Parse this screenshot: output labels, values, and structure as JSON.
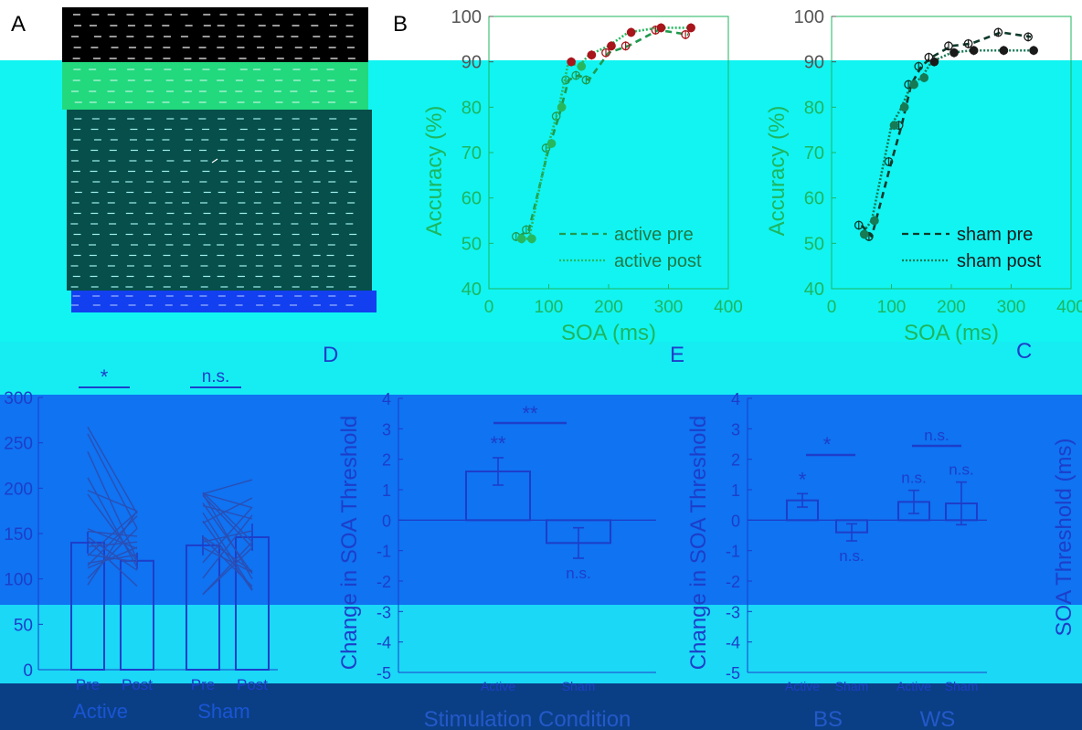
{
  "colors": {
    "bg_cyan": "#11f4f2",
    "black": "#000000",
    "green_band": "#22d97e",
    "dark_teal": "#064f4a",
    "blue_bar": "#1240f0",
    "mid_blue": "#0f73f2",
    "deep_blue": "#2a4fb5",
    "navy": "#0a3f86",
    "active_red": "#a8151b",
    "active_green": "#1f9a4e",
    "sham_black": "#1a1a1a",
    "axis_green": "#1db65f",
    "axis_blue": "#1d3ec9"
  },
  "panels": {
    "A": "A",
    "B": "B",
    "C": "C",
    "D": "D",
    "E": "E"
  },
  "chart_data": [
    {
      "id": "B-left",
      "type": "line",
      "ylabel": "Accuracy (%)",
      "xlabel": "SOA (ms)",
      "xlim": [
        0,
        400
      ],
      "ylim": [
        40,
        100
      ],
      "xticks": [
        "0",
        "100",
        "200",
        "300",
        "400"
      ],
      "yticks": [
        "40",
        "50",
        "60",
        "70",
        "80",
        "90",
        "100"
      ],
      "legend": [
        "active pre",
        "active post"
      ],
      "legend_position": "bottom-right",
      "series": [
        {
          "name": "active pre",
          "x": [
            50,
            67,
            100,
            117,
            133,
            150,
            167,
            200,
            233,
            283,
            333
          ],
          "y": [
            51.5,
            53,
            71,
            78,
            86,
            87,
            86,
            92,
            93.5,
            97,
            96
          ]
        },
        {
          "name": "active post",
          "x": [
            50,
            67,
            100,
            117,
            133,
            150,
            167,
            200,
            233,
            283,
            333
          ],
          "y": [
            51,
            51,
            72,
            80,
            90,
            89,
            91.5,
            93.5,
            96.5,
            97.5,
            97.5
          ]
        }
      ]
    },
    {
      "id": "B-right",
      "type": "line",
      "ylabel": "Accuracy (%)",
      "xlabel": "SOA (ms)",
      "xlim": [
        0,
        400
      ],
      "ylim": [
        40,
        100
      ],
      "xticks": [
        "0",
        "100",
        "200",
        "300",
        "400"
      ],
      "yticks": [
        "40",
        "50",
        "60",
        "70",
        "80",
        "90",
        "100"
      ],
      "legend": [
        "sham pre",
        "sham post"
      ],
      "legend_position": "bottom-right",
      "series": [
        {
          "name": "sham pre",
          "x": [
            50,
            67,
            100,
            117,
            133,
            150,
            167,
            200,
            233,
            283,
            333
          ],
          "y": [
            54,
            51.5,
            68,
            76,
            85,
            89,
            91,
            93.5,
            94,
            96.5,
            95.5
          ]
        },
        {
          "name": "sham post",
          "x": [
            50,
            67,
            100,
            117,
            133,
            150,
            167,
            200,
            233,
            283,
            333
          ],
          "y": [
            52,
            55,
            76,
            80,
            85,
            86.5,
            90,
            92,
            92.5,
            92.5,
            92.5
          ]
        }
      ]
    },
    {
      "id": "C",
      "type": "bar",
      "ylabel": "SOA Threshold (ms)",
      "ylim": [
        0,
        300
      ],
      "yticks": [
        "0",
        "50",
        "100",
        "150",
        "200",
        "250",
        "300"
      ],
      "categories": [
        "Pre",
        "Post",
        "Pre",
        "Post"
      ],
      "groups": [
        "Active",
        "Sham"
      ],
      "values": [
        140,
        120,
        137,
        146
      ],
      "errors": [
        12,
        9,
        11,
        15
      ],
      "sig": [
        "*",
        "n.s."
      ]
    },
    {
      "id": "D",
      "type": "bar",
      "ylabel": "Change in SOA Threshold",
      "xlabel": "Stimulation Condition",
      "ylim": [
        -5,
        4
      ],
      "yticks": [
        "-5",
        "-4",
        "-3",
        "-2",
        "-1",
        "0",
        "1",
        "2",
        "3",
        "4"
      ],
      "categories": [
        "Active",
        "Sham"
      ],
      "values": [
        1.6,
        -0.75
      ],
      "errors": [
        0.45,
        0.5
      ],
      "labels": [
        "**",
        "n.s."
      ],
      "sig": "**"
    },
    {
      "id": "E",
      "type": "bar",
      "ylabel": "Change in SOA Threshold",
      "ylim": [
        -5,
        4
      ],
      "yticks": [
        "-5",
        "-4",
        "-3",
        "-2",
        "-1",
        "0",
        "1",
        "2",
        "3",
        "4"
      ],
      "categories": [
        "Active",
        "Sham",
        "Active",
        "Sham"
      ],
      "groups": [
        "BS",
        "WS"
      ],
      "values": [
        0.65,
        -0.4,
        0.6,
        0.55
      ],
      "errors": [
        0.22,
        0.28,
        0.38,
        0.7
      ],
      "labels": [
        "*",
        "n.s.",
        "n.s.",
        "n.s."
      ],
      "sig": [
        "*",
        "n.s."
      ]
    }
  ]
}
